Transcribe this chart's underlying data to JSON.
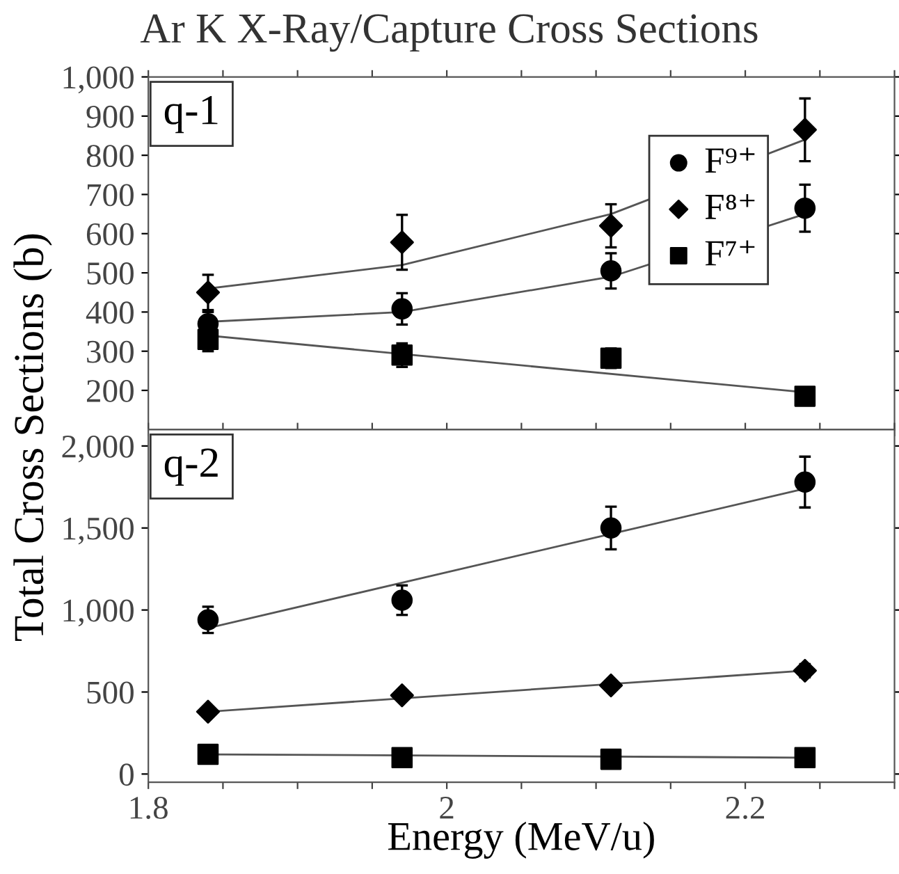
{
  "chart_data": [
    {
      "type": "scatter",
      "title": "Ar K X-Ray/Capture Cross Sections",
      "ylabel": "Total Cross Sections (b)",
      "annotations": [
        "q-1"
      ],
      "legend": "top right",
      "tick_labels": "y",
      "xlim": [
        1.8,
        2.3
      ],
      "xticks": [
        {
          "value": 1.8,
          "label": null
        },
        {
          "value": 1.85,
          "label": null
        },
        {
          "value": 1.9,
          "label": null
        },
        {
          "value": 1.95,
          "label": null
        },
        {
          "value": 2,
          "label": null
        },
        {
          "value": 2.05,
          "label": null
        },
        {
          "value": 2.1,
          "label": null
        },
        {
          "value": 2.15,
          "label": null
        },
        {
          "value": 2.2,
          "label": null
        },
        {
          "value": 2.25,
          "label": null
        },
        {
          "value": 2.3,
          "label": null
        }
      ],
      "ylim": [
        100,
        1000
      ],
      "yticks": [
        {
          "value": 200,
          "label": "200"
        },
        {
          "value": 300,
          "label": "300"
        },
        {
          "value": 400,
          "label": "400"
        },
        {
          "value": 500,
          "label": "500"
        },
        {
          "value": 600,
          "label": "600"
        },
        {
          "value": 700,
          "label": "700"
        },
        {
          "value": 800,
          "label": "800"
        },
        {
          "value": 900,
          "label": "900"
        },
        {
          "value": 1000,
          "label": "1,000"
        }
      ],
      "series": [
        {
          "name": "F⁹⁺",
          "color": "#000000",
          "marker": "circle",
          "x": [
            1.84,
            1.97,
            2.11,
            2.24
          ],
          "values": [
            370,
            408,
            505,
            665
          ],
          "errors": [
            30,
            40,
            45,
            60
          ]
        },
        {
          "name": "F⁸⁺",
          "color": "#000000",
          "marker": "diamond",
          "x": [
            1.84,
            1.97,
            2.11,
            2.24
          ],
          "values": [
            450,
            578,
            620,
            865
          ],
          "errors": [
            45,
            70,
            55,
            80
          ]
        },
        {
          "name": "F⁷⁺",
          "color": "#000000",
          "marker": "square",
          "x": [
            1.84,
            1.97,
            2.11,
            2.24
          ],
          "values": [
            330,
            290,
            282,
            185
          ],
          "errors": [
            30,
            30,
            25,
            null
          ]
        },
        {
          "type": "line",
          "color": "#555555",
          "x": [
            1.84,
            1.97,
            2.11,
            2.24
          ],
          "values": [
            375,
            400,
            490,
            650
          ]
        },
        {
          "type": "line",
          "color": "#555555",
          "x": [
            1.84,
            1.97,
            2.11,
            2.24
          ],
          "values": [
            460,
            520,
            650,
            840
          ]
        },
        {
          "type": "line",
          "color": "#555555",
          "x": [
            1.84,
            2.24
          ],
          "values": [
            340,
            195
          ]
        }
      ]
    },
    {
      "type": "scatter",
      "xlabel": "Energy (MeV/u)",
      "annotations": [
        "q-2"
      ],
      "xlim": [
        1.8,
        2.3
      ],
      "xticks": [
        1.8,
        {
          "value": 1.85,
          "label": null
        },
        {
          "value": 1.9,
          "label": null
        },
        {
          "value": 1.95,
          "label": null
        },
        2,
        {
          "value": 2.05,
          "label": null
        },
        {
          "value": 2.1,
          "label": null
        },
        {
          "value": 2.15,
          "label": null
        },
        2.2,
        {
          "value": 2.25,
          "label": null
        },
        {
          "value": 2.3,
          "label": null
        }
      ],
      "ylim": [
        -50,
        2100
      ],
      "yticks": [
        0,
        {
          "value": 500,
          "label": "500"
        },
        {
          "value": 1000,
          "label": "1,000"
        },
        {
          "value": 1500,
          "label": "1,500"
        },
        {
          "value": 2000,
          "label": "2,000"
        }
      ],
      "series": [
        {
          "color": "#000000",
          "marker": "circle",
          "x": [
            1.84,
            1.97,
            2.11,
            2.24
          ],
          "values": [
            940,
            1060,
            1500,
            1780
          ],
          "errors": [
            80,
            90,
            130,
            155
          ]
        },
        {
          "color": "#000000",
          "marker": "diamond",
          "x": [
            1.84,
            1.97,
            2.11,
            2.24
          ],
          "values": [
            380,
            480,
            540,
            630
          ],
          "errors": [
            null,
            null,
            null,
            40
          ]
        },
        {
          "color": "#000000",
          "marker": "square",
          "x": [
            1.84,
            1.97,
            2.11,
            2.24
          ],
          "values": [
            120,
            100,
            90,
            100
          ]
        },
        {
          "type": "line",
          "color": "#555555",
          "x": [
            1.84,
            2.24
          ],
          "values": [
            890,
            1740
          ]
        },
        {
          "type": "line",
          "color": "#555555",
          "x": [
            1.84,
            2.24
          ],
          "values": [
            380,
            630
          ]
        },
        {
          "type": "line",
          "color": "#555555",
          "x": [
            1.84,
            2.24
          ],
          "values": [
            120,
            100
          ]
        }
      ]
    }
  ]
}
